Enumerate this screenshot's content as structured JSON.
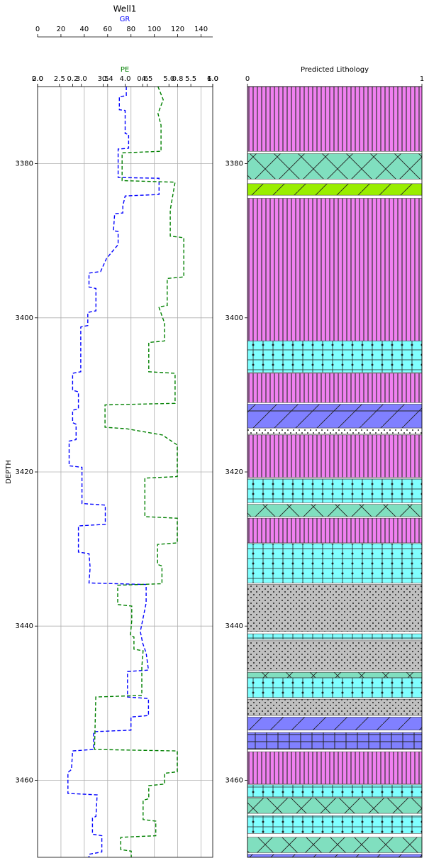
{
  "chart_data": [
    {
      "type": "log_track",
      "title": "Well1",
      "y_label": "DEPTH",
      "grid": true,
      "ylim": [
        3370,
        3470
      ],
      "yticks": [
        3380,
        3400,
        3420,
        3440,
        3460
      ],
      "series": [
        {
          "name": "GR",
          "color": "#0000ff",
          "xlim": [
            0,
            150
          ],
          "xticks": [
            0,
            20,
            40,
            60,
            80,
            100,
            120,
            140
          ],
          "depth": [
            3370.0,
            3371.2,
            3371.3,
            3373.0,
            3373.1,
            3376.1,
            3376.2,
            3378.0,
            3378.1,
            3381.8,
            3381.9,
            3384.0,
            3384.2,
            3385.5,
            3386.4,
            3386.5,
            3388.7,
            3388.8,
            3390.5,
            3392.3,
            3394.0,
            3394.2,
            3396.0,
            3396.2,
            3399.1,
            3399.3,
            3401.0,
            3401.2,
            3407.0,
            3407.2,
            3409.4,
            3409.6,
            3411.8,
            3412.0,
            3413.6,
            3413.8,
            3415.8,
            3416.0,
            3419.2,
            3419.4,
            3424.1,
            3424.3,
            3426.8,
            3427.0,
            3430.4,
            3430.6,
            3432.4,
            3434.4,
            3434.6,
            3437.0,
            3440.7,
            3442.2,
            3443.5,
            3445.7,
            3445.9,
            3449.2,
            3449.4,
            3451.6,
            3451.8,
            3453.5,
            3453.7,
            3456.0,
            3456.2,
            3458.6,
            3459.0,
            3461.7,
            3461.9,
            3464.7,
            3464.9,
            3467.0,
            3467.2,
            3469.3,
            3469.6,
            3470.0
          ],
          "values": [
            76,
            76,
            70,
            70,
            75,
            75,
            78,
            78,
            69,
            69,
            104,
            104,
            75,
            73,
            73,
            66,
            65,
            69,
            69,
            59,
            54,
            44,
            44,
            50,
            50,
            43,
            43,
            37,
            37,
            30,
            30,
            35,
            35,
            30,
            30,
            33,
            33,
            27,
            27,
            38,
            38,
            58,
            58,
            35,
            35,
            44,
            45,
            44,
            93,
            93,
            88,
            90,
            93,
            95,
            77,
            77,
            95,
            95,
            80,
            80,
            48,
            48,
            30,
            29,
            26,
            26,
            51,
            50,
            47,
            47,
            55,
            55,
            44,
            44
          ]
        },
        {
          "name": "PE",
          "color": "#008000",
          "xlim": [
            2,
            6
          ],
          "xticks": [
            {
              "value": 2,
              "label": "2.0"
            },
            {
              "value": 2.5,
              "label": "2.5"
            },
            {
              "value": 3,
              "label": "3.0"
            },
            {
              "value": 3.5,
              "label": "3.5"
            },
            {
              "value": 4,
              "label": "4.0"
            },
            {
              "value": 4.5,
              "label": "4.5"
            },
            {
              "value": 5,
              "label": "5.0"
            },
            {
              "value": 5.5,
              "label": "5.5"
            },
            {
              "value": 6,
              "label": "6.0"
            }
          ],
          "depth": [
            3370.0,
            3371.7,
            3373.5,
            3375.0,
            3378.4,
            3378.6,
            3382.2,
            3382.4,
            3386.0,
            3389.4,
            3389.6,
            3394.7,
            3394.9,
            3398.4,
            3398.6,
            3400.7,
            3403.0,
            3403.2,
            3407.0,
            3407.2,
            3411.1,
            3411.3,
            3414.2,
            3414.4,
            3415.2,
            3416.5,
            3420.6,
            3420.8,
            3425.8,
            3426.0,
            3429.2,
            3429.4,
            3432.0,
            3432.2,
            3434.5,
            3434.7,
            3437.2,
            3437.4,
            3439.3,
            3441.2,
            3441.4,
            3443.0,
            3443.2,
            3445.3,
            3449.0,
            3449.2,
            3456.0,
            3456.2,
            3458.9,
            3459.1,
            3460.5,
            3460.7,
            3462.4,
            3462.6,
            3465.1,
            3465.3,
            3467.2,
            3467.4,
            3469.0,
            3469.2,
            3470.0
          ],
          "values": [
            4.75,
            4.87,
            4.75,
            4.82,
            4.82,
            3.93,
            3.93,
            5.14,
            5.03,
            5.03,
            5.34,
            5.34,
            4.96,
            4.96,
            4.77,
            4.9,
            4.9,
            4.54,
            4.54,
            5.14,
            5.14,
            3.54,
            3.54,
            4.04,
            4.85,
            5.19,
            5.19,
            4.45,
            4.45,
            5.19,
            5.19,
            4.74,
            4.74,
            4.84,
            4.84,
            3.83,
            3.83,
            4.15,
            4.15,
            4.12,
            4.2,
            4.2,
            4.41,
            4.38,
            4.38,
            3.33,
            3.3,
            5.19,
            5.19,
            4.9,
            4.9,
            4.54,
            4.54,
            4.41,
            4.41,
            4.7,
            4.7,
            3.9,
            3.9,
            4.14,
            4.14
          ]
        }
      ],
      "extra_axis": {
        "xlim": [
          0,
          1
        ],
        "xticks": [
          {
            "value": 0,
            "label": "0.0"
          },
          {
            "value": 0.2,
            "label": "0.2"
          },
          {
            "value": 0.4,
            "label": "0.4"
          },
          {
            "value": 0.6,
            "label": "0.6"
          },
          {
            "value": 0.8,
            "label": "0.8"
          },
          {
            "value": 1,
            "label": "1.0"
          }
        ]
      }
    },
    {
      "type": "lithology",
      "title": "Predicted Lithology",
      "xlim": [
        0,
        1
      ],
      "xticks": [
        0,
        1
      ],
      "ylim": [
        3370,
        3470
      ],
      "yticks": [
        3380,
        3400,
        3420,
        3440,
        3460
      ],
      "intervals": [
        {
          "top": 3370.0,
          "base": 3378.4,
          "color": "#f080f0",
          "hatch": "vertical"
        },
        {
          "top": 3378.7,
          "base": 3382.0,
          "color": "#80dfbf",
          "hatch": "cross"
        },
        {
          "top": 3382.6,
          "base": 3384.1,
          "color": "#99ee00",
          "hatch": "diagonal"
        },
        {
          "top": 3384.5,
          "base": 3403.0,
          "color": "#f080f0",
          "hatch": "vertical"
        },
        {
          "top": 3403.0,
          "base": 3407.1,
          "color": "#80ffff",
          "hatch": "plusdot"
        },
        {
          "top": 3407.2,
          "base": 3411.0,
          "color": "#f080f0",
          "hatch": "vertical"
        },
        {
          "top": 3411.2,
          "base": 3414.3,
          "color": "#8080ff",
          "hatch": "diagonal"
        },
        {
          "top": 3414.3,
          "base": 3415.1,
          "color": "#ffffff",
          "hatch": "dots"
        },
        {
          "top": 3415.2,
          "base": 3420.7,
          "color": "#f080f0",
          "hatch": "vertical"
        },
        {
          "top": 3420.9,
          "base": 3424.0,
          "color": "#80ffff",
          "hatch": "plusdot"
        },
        {
          "top": 3424.2,
          "base": 3425.8,
          "color": "#80dfbf",
          "hatch": "cross"
        },
        {
          "top": 3426.0,
          "base": 3429.2,
          "color": "#f080f0",
          "hatch": "vertical"
        },
        {
          "top": 3429.3,
          "base": 3434.4,
          "color": "#80ffff",
          "hatch": "plusdot"
        },
        {
          "top": 3434.6,
          "base": 3440.7,
          "color": "#c0c0c0",
          "hatch": "dots"
        },
        {
          "top": 3441.0,
          "base": 3441.7,
          "color": "#80ffff",
          "hatch": "plusdot"
        },
        {
          "top": 3441.9,
          "base": 3445.8,
          "color": "#c0c0c0",
          "hatch": "dots"
        },
        {
          "top": 3446.0,
          "base": 3446.7,
          "color": "#80dfbf",
          "hatch": "cross"
        },
        {
          "top": 3446.7,
          "base": 3449.3,
          "color": "#80ffff",
          "hatch": "plusdot"
        },
        {
          "top": 3449.5,
          "base": 3451.6,
          "color": "#c0c0c0",
          "hatch": "dots"
        },
        {
          "top": 3451.8,
          "base": 3453.5,
          "color": "#8080ff",
          "hatch": "diagonal"
        },
        {
          "top": 3453.8,
          "base": 3456.0,
          "color": "#8080ff",
          "hatch": "grid"
        },
        {
          "top": 3456.3,
          "base": 3460.5,
          "color": "#f080f0",
          "hatch": "vertical"
        },
        {
          "top": 3460.6,
          "base": 3462.2,
          "color": "#80ffff",
          "hatch": "plusdot"
        },
        {
          "top": 3462.3,
          "base": 3464.3,
          "color": "#80dfbf",
          "hatch": "cross"
        },
        {
          "top": 3464.6,
          "base": 3466.9,
          "color": "#80ffff",
          "hatch": "plusdot"
        },
        {
          "top": 3467.4,
          "base": 3469.4,
          "color": "#80dfbf",
          "hatch": "cross"
        },
        {
          "top": 3469.6,
          "base": 3470.0,
          "color": "#8080ff",
          "hatch": "diagonal"
        }
      ]
    }
  ]
}
